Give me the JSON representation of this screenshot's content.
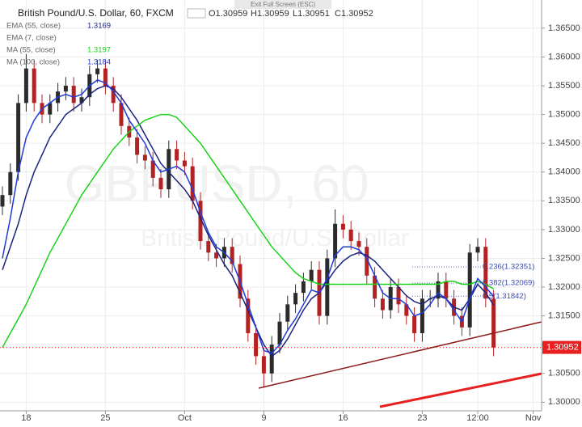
{
  "chart_data": {
    "type": "candlestick",
    "title": "British Pound/U.S. Dollar, 60, FXCM",
    "ohlc_header": [
      "O1.30959",
      "H1.30959",
      "L1.30951",
      "C1.30952"
    ],
    "exit_button": "Exit Full Screen (ESC)",
    "watermark": [
      "GBPUSD, 60",
      "British Pound/U.S. Dollar"
    ],
    "categories": [
      null,
      null,
      null,
      "18",
      null,
      null,
      null,
      null,
      null,
      null,
      null,
      null,
      null,
      "25",
      null,
      null,
      null,
      null,
      null,
      null,
      null,
      null,
      null,
      "Oct",
      null,
      null,
      null,
      null,
      null,
      null,
      null,
      null,
      null,
      "9",
      null,
      null,
      null,
      null,
      null,
      null,
      null,
      null,
      null,
      "16",
      null,
      null,
      null,
      null,
      null,
      null,
      null,
      null,
      null,
      "23",
      null,
      null,
      null,
      null,
      null,
      null,
      "12:00",
      null,
      null,
      null,
      null,
      null,
      null,
      "Nov"
    ],
    "open": [
      1.334,
      1.336,
      1.34,
      1.352,
      1.358,
      1.352,
      1.35,
      1.352,
      1.354,
      1.355,
      1.352,
      1.353,
      1.357,
      1.358,
      1.355,
      1.352,
      1.348,
      1.346,
      1.343,
      1.342,
      1.339,
      1.337,
      1.344,
      1.342,
      1.341,
      1.335,
      1.328,
      1.326,
      1.325,
      1.327,
      1.324,
      1.318,
      1.312,
      1.308,
      1.305,
      1.31,
      1.314,
      1.317,
      1.319,
      1.321,
      1.323,
      1.315,
      1.325,
      1.331,
      1.33,
      1.328,
      1.327,
      1.322,
      1.318,
      1.316,
      1.32,
      1.317,
      1.315,
      1.312,
      1.318,
      1.318,
      1.321,
      1.318,
      1.315,
      1.313,
      1.326,
      1.327,
      1.318,
      null,
      null,
      null,
      null,
      null
    ],
    "high": [
      1.3375,
      1.3415,
      1.3535,
      1.3605,
      1.3595,
      1.3535,
      1.3535,
      1.3555,
      1.3565,
      1.3565,
      1.3545,
      1.3585,
      1.3595,
      1.3595,
      1.3565,
      1.3535,
      1.3495,
      1.3475,
      1.3445,
      1.3435,
      1.3405,
      1.3455,
      1.3455,
      1.3435,
      1.3425,
      1.3365,
      1.3295,
      1.3275,
      1.3285,
      1.3285,
      1.3255,
      1.3195,
      1.3135,
      1.3095,
      1.3115,
      1.3155,
      1.3185,
      1.3205,
      1.3225,
      1.3245,
      1.3245,
      1.3265,
      1.3335,
      1.3325,
      1.3315,
      1.3295,
      1.3285,
      1.3235,
      1.3195,
      1.3215,
      1.3215,
      1.3185,
      1.3165,
      1.3195,
      1.3195,
      1.3225,
      1.3225,
      1.3195,
      1.3165,
      1.3275,
      1.3285,
      1.3285,
      1.3195,
      null,
      null,
      null,
      null,
      null
    ],
    "low": [
      1.3325,
      1.3345,
      1.3385,
      1.3505,
      1.3505,
      1.3485,
      1.3485,
      1.3505,
      1.3525,
      1.3505,
      1.3505,
      1.3515,
      1.3555,
      1.3535,
      1.3505,
      1.3465,
      1.3445,
      1.3415,
      1.3405,
      1.3375,
      1.3355,
      1.3355,
      1.3405,
      1.3395,
      1.3335,
      1.3265,
      1.3245,
      1.3235,
      1.3235,
      1.3225,
      1.3165,
      1.3105,
      1.3065,
      1.3025,
      1.3035,
      1.3085,
      1.3125,
      1.3155,
      1.3175,
      1.3195,
      1.3135,
      1.3135,
      1.3235,
      1.3285,
      1.3265,
      1.3255,
      1.3205,
      1.3165,
      1.3145,
      1.3145,
      1.3155,
      1.3135,
      1.3105,
      1.3105,
      1.3165,
      1.3165,
      1.3165,
      1.3135,
      1.3115,
      1.3115,
      1.3245,
      1.3165,
      1.308,
      null,
      null,
      null,
      null,
      null
    ],
    "close": [
      1.336,
      1.34,
      1.352,
      1.358,
      1.352,
      1.35,
      1.352,
      1.354,
      1.355,
      1.352,
      1.353,
      1.357,
      1.358,
      1.355,
      1.352,
      1.348,
      1.346,
      1.343,
      1.342,
      1.339,
      1.337,
      1.344,
      1.342,
      1.341,
      1.335,
      1.328,
      1.326,
      1.325,
      1.327,
      1.324,
      1.318,
      1.312,
      1.308,
      1.305,
      1.31,
      1.314,
      1.317,
      1.319,
      1.321,
      1.323,
      1.315,
      1.325,
      1.331,
      1.33,
      1.328,
      1.327,
      1.322,
      1.318,
      1.316,
      1.32,
      1.317,
      1.315,
      1.312,
      1.318,
      1.318,
      1.321,
      1.318,
      1.315,
      1.313,
      1.326,
      1.327,
      1.318,
      1.3095,
      null,
      null,
      null,
      null,
      null
    ],
    "up_color": "#2b2b2b",
    "down_color": "#b22222",
    "series": [
      {
        "name": "EMA (55, close)",
        "color": "#1a237e",
        "last": 1.3169,
        "values": [
          1.323,
          1.327,
          1.331,
          1.336,
          1.34,
          1.343,
          1.346,
          1.348,
          1.35,
          1.351,
          1.352,
          1.3535,
          1.3545,
          1.355,
          1.3545,
          1.353,
          1.351,
          1.349,
          1.3465,
          1.344,
          1.3415,
          1.34,
          1.3385,
          1.337,
          1.335,
          1.332,
          1.329,
          1.3265,
          1.324,
          1.322,
          1.319,
          1.316,
          1.313,
          1.31,
          1.308,
          1.309,
          1.311,
          1.3135,
          1.316,
          1.318,
          1.319,
          1.321,
          1.323,
          1.3245,
          1.3255,
          1.326,
          1.3255,
          1.3245,
          1.323,
          1.3215,
          1.32,
          1.3185,
          1.3175,
          1.317,
          1.318,
          1.3185,
          1.318,
          1.3165,
          1.316,
          1.318,
          1.3205,
          1.319,
          1.3169,
          null,
          null,
          null,
          null,
          null
        ]
      },
      {
        "name": "MA (55, close)",
        "color": "#19d219",
        "last": 1.3197,
        "values": [
          1.3095,
          1.312,
          1.3145,
          1.317,
          1.32,
          1.323,
          1.326,
          1.3285,
          1.331,
          1.3335,
          1.336,
          1.338,
          1.34,
          1.342,
          1.344,
          1.3455,
          1.347,
          1.348,
          1.349,
          1.3495,
          1.35,
          1.35,
          1.3495,
          1.348,
          1.3465,
          1.345,
          1.343,
          1.341,
          1.339,
          1.337,
          1.335,
          1.333,
          1.331,
          1.329,
          1.327,
          1.3255,
          1.324,
          1.3225,
          1.3215,
          1.321,
          1.3205,
          1.3205,
          1.3205,
          1.3205,
          1.3205,
          1.3205,
          1.3205,
          1.3205,
          1.3205,
          1.3205,
          1.3205,
          1.3205,
          1.3205,
          1.3205,
          1.3205,
          1.3205,
          1.321,
          1.321,
          1.3205,
          1.3205,
          1.321,
          1.3205,
          1.3197,
          null,
          null,
          null,
          null,
          null
        ]
      },
      {
        "name": "MA (100, close)",
        "color": "#1e3cd8",
        "last": 1.3184,
        "values": [
          1.325,
          1.332,
          1.34,
          1.346,
          1.349,
          1.351,
          1.352,
          1.353,
          1.3535,
          1.353,
          1.3535,
          1.355,
          1.356,
          1.3555,
          1.354,
          1.352,
          1.349,
          1.347,
          1.345,
          1.342,
          1.34,
          1.3405,
          1.341,
          1.34,
          1.337,
          1.333,
          1.3295,
          1.327,
          1.326,
          1.3245,
          1.321,
          1.317,
          1.313,
          1.309,
          1.3085,
          1.31,
          1.3125,
          1.3145,
          1.317,
          1.3195,
          1.319,
          1.3215,
          1.3255,
          1.327,
          1.327,
          1.3265,
          1.325,
          1.322,
          1.319,
          1.318,
          1.318,
          1.317,
          1.315,
          1.3155,
          1.317,
          1.319,
          1.318,
          1.316,
          1.314,
          1.318,
          1.3215,
          1.32,
          1.3184,
          null,
          null,
          null,
          null,
          null
        ]
      }
    ],
    "other_studies": [
      "EMA (7, close)"
    ],
    "fib_levels": [
      {
        "value": 1.32351,
        "label": "0.236(1.32351)"
      },
      {
        "value": 1.32069,
        "label": "0.382(1.32069)"
      },
      {
        "value": 1.31842,
        "label": "0.5(1.31842)"
      }
    ],
    "last_price": 1.30952,
    "ylim": [
      1.2985,
      1.3699
    ],
    "yticks": [
      {
        "value": 1.3,
        "label": "1.30000"
      },
      {
        "value": 1.305,
        "label": "1.30500"
      },
      {
        "value": 1.31,
        "label": "1.31000"
      },
      {
        "value": 1.315,
        "label": "1.31500"
      },
      {
        "value": 1.32,
        "label": "1.32000"
      },
      {
        "value": 1.325,
        "label": "1.32500"
      },
      {
        "value": 1.33,
        "label": "1.33000"
      },
      {
        "value": 1.335,
        "label": "1.33500"
      },
      {
        "value": 1.34,
        "label": "1.34000"
      },
      {
        "value": 1.345,
        "label": "1.34500"
      },
      {
        "value": 1.35,
        "label": "1.35000"
      },
      {
        "value": 1.355,
        "label": "1.35500"
      },
      {
        "value": 1.36,
        "label": "1.36000"
      },
      {
        "value": 1.365,
        "label": "1.36500"
      }
    ],
    "grid": true
  }
}
